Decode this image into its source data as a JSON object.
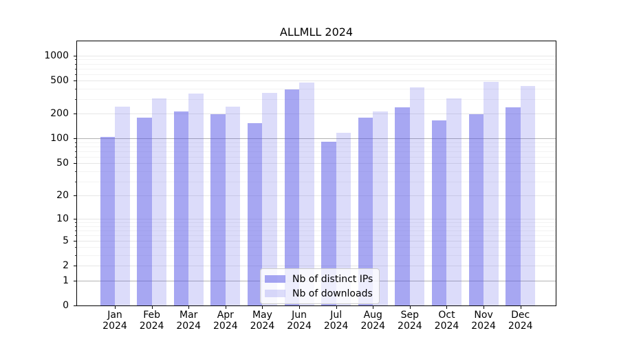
{
  "chart_data": {
    "type": "bar",
    "title": "ALLMLL 2024",
    "categories": [
      "Jan",
      "Feb",
      "Mar",
      "Apr",
      "May",
      "Jun",
      "Jul",
      "Aug",
      "Sep",
      "Oct",
      "Nov",
      "Dec"
    ],
    "category_year": "2024",
    "series": [
      {
        "name": "Nb of distinct IPs",
        "color": "rgba(80,80,230,0.5)",
        "values": [
          104,
          181,
          213,
          198,
          155,
          394,
          91,
          181,
          237,
          165,
          197,
          238
        ]
      },
      {
        "name": "Nb of downloads",
        "color": "rgba(80,80,230,0.2)",
        "values": [
          244,
          306,
          347,
          244,
          358,
          478,
          118,
          215,
          412,
          306,
          483,
          433
        ]
      }
    ],
    "yscale": "log10(1+y)",
    "ylim": [
      0,
      1490
    ],
    "yticks": [
      0,
      1,
      2,
      5,
      10,
      20,
      50,
      100,
      200,
      500,
      1000
    ],
    "yticks_minor": [
      3,
      4,
      6,
      7,
      8,
      9,
      30,
      40,
      60,
      70,
      80,
      90,
      300,
      400,
      600,
      700,
      800,
      900
    ],
    "emphasized_gridlines": [
      1,
      100
    ],
    "grid": true,
    "legend_position": "lower center",
    "colors": {
      "background": "#ffffff",
      "bar_base": "#5050e6",
      "grid_major": "#e6e6e6",
      "grid_minor": "#f3f3f3",
      "grid_emphasis": "#b2b2b2",
      "spine": "#000000"
    }
  }
}
